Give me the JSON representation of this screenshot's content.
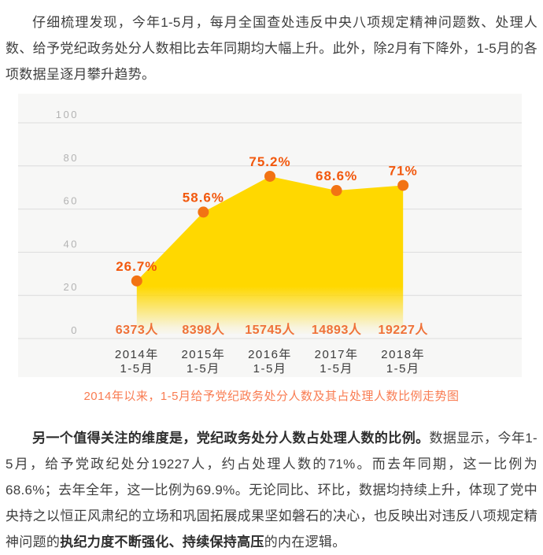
{
  "article": {
    "paragraph1": "仔细梳理发现，今年1-5月，每月全国查处违反中央八项规定精神问题数、处理人数、给予党纪政务处分人数相比去年同期均大幅上升。此外，除2月有下降外，1-5月的各项数据呈逐月攀升趋势。",
    "paragraph2": {
      "bold_lead": "另一个值得关注的维度是，党纪政务处分人数占处理人数的比例。",
      "text_a": "数据显示，今年1-5月，给予党政纪处分19227人，约占处理人数的71%。而去年同期，这一比例为68.6%；去年全年，这一比例为69.9%。无论同比、环比，数据均持续上升，体现了党中央持之以恒正风肃纪的立场和巩固拓展成果坚如磐石的决心，也反映出对违反八项规定精神问题的",
      "bold_mid": "执纪力度不断强化、持续保持高压",
      "text_b": "的内在逻辑。"
    }
  },
  "chart_data": {
    "type": "area",
    "title": "2014年以来，1-5月给予党纪政务处分人数及其占处理人数比例走势图",
    "categories": [
      "2014年",
      "2015年",
      "2016年",
      "2017年",
      "2018年"
    ],
    "category_sub": "1-5月",
    "series": [
      {
        "name": "给予党纪政务处分人数占处理人数比例",
        "values": [
          26.7,
          58.6,
          75.2,
          68.6,
          71
        ],
        "labels": [
          "26.7%",
          "58.6%",
          "75.2%",
          "68.6%",
          "71%"
        ]
      },
      {
        "name": "给予党纪政务处分人数",
        "values": [
          6373,
          8398,
          15745,
          14893,
          19227
        ],
        "labels": [
          "6373人",
          "8398人",
          "15745人",
          "14893人",
          "19227人"
        ]
      }
    ],
    "xlabel": "",
    "ylabel": "",
    "ylim": [
      0,
      100
    ],
    "yticks": [
      0,
      20,
      40,
      60,
      80,
      100
    ],
    "grid": true,
    "legend": false
  },
  "colors": {
    "area_fill": "#ffd800",
    "dot": "#f27314",
    "percent_label": "#f2580d",
    "count_label": "#ef7138",
    "caption": "#f97c52",
    "gridline": "#dcdcdc",
    "panel_bg": "#f7f7f6",
    "tick_label": "#b3b3b3",
    "body_text": "#3f3f3f"
  }
}
